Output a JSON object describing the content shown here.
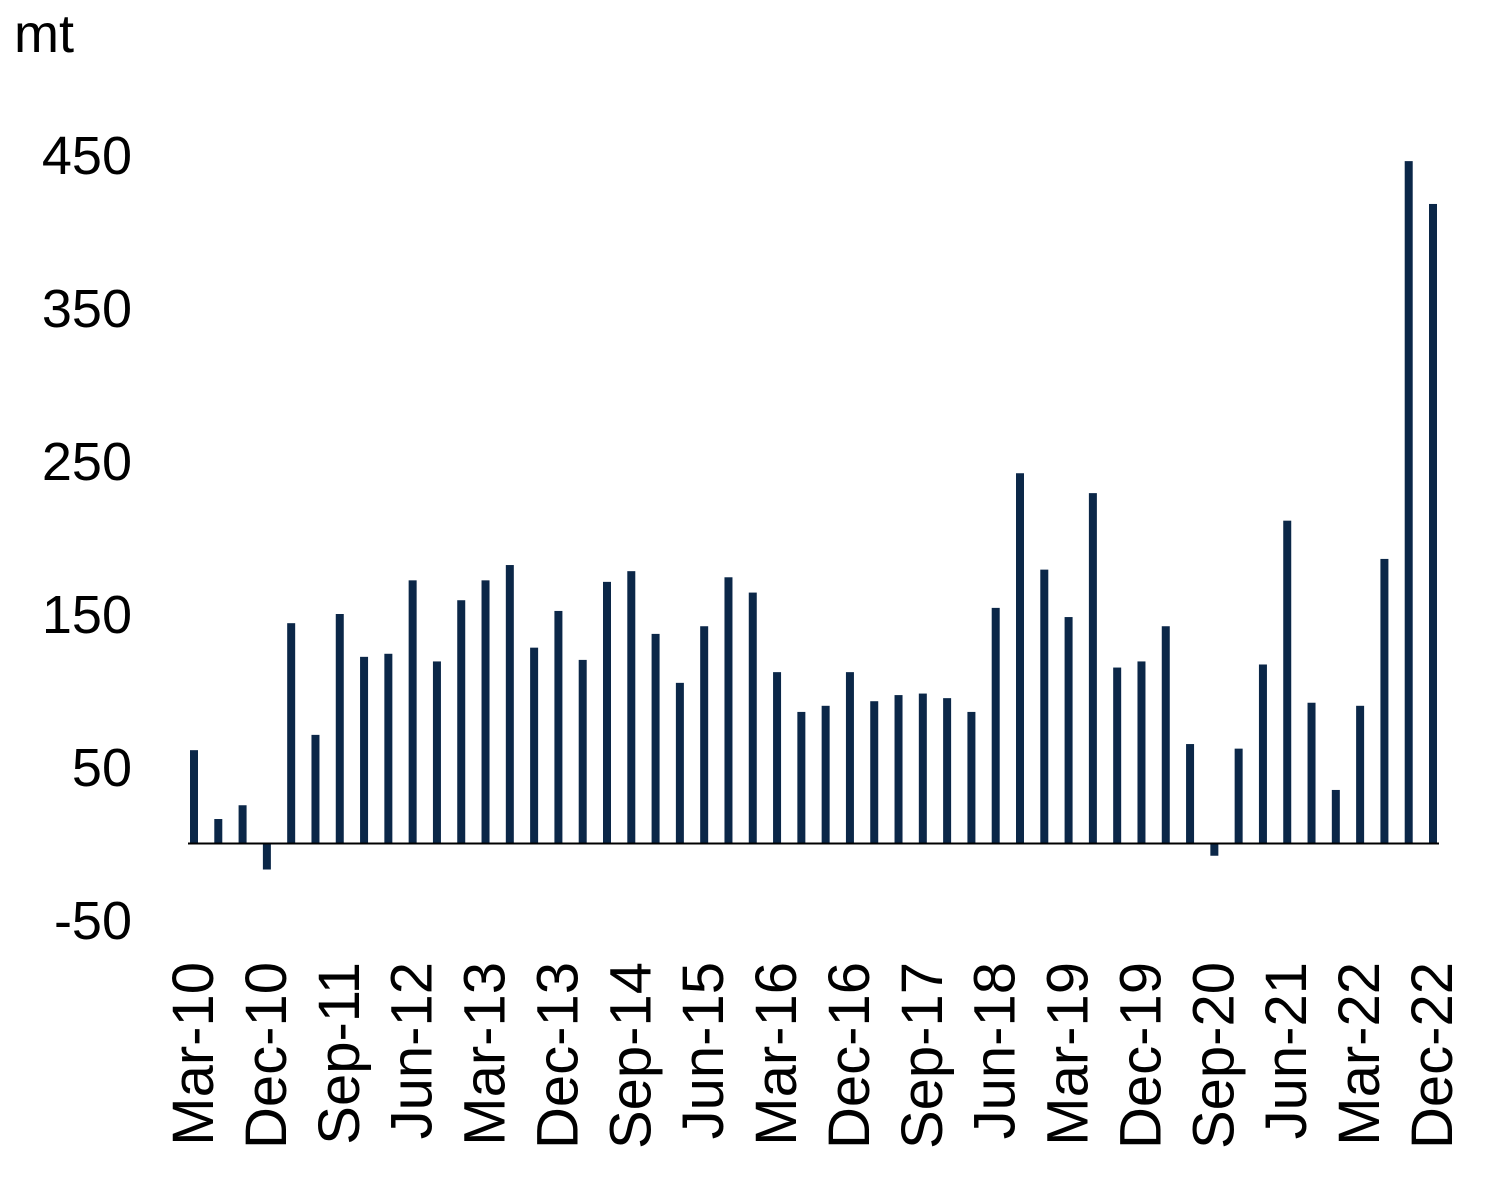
{
  "chart_data": {
    "type": "bar",
    "y_label": "mt",
    "categories": [
      "Mar-10",
      null,
      null,
      "Dec-10",
      null,
      null,
      "Sep-11",
      null,
      null,
      "Jun-12",
      null,
      null,
      "Mar-13",
      null,
      null,
      "Dec-13",
      null,
      null,
      "Sep-14",
      null,
      null,
      "Jun-15",
      null,
      null,
      "Mar-16",
      null,
      null,
      "Dec-16",
      null,
      null,
      "Sep-17",
      null,
      null,
      "Jun-18",
      null,
      null,
      "Mar-19",
      null,
      null,
      "Dec-19",
      null,
      null,
      "Sep-20",
      null,
      null,
      "Jun-21",
      null,
      null,
      "Mar-22",
      null,
      null,
      "Dec-22"
    ],
    "values": [
      61,
      16,
      25,
      -17,
      144,
      71,
      150,
      122,
      124,
      172,
      119,
      159,
      172,
      182,
      128,
      152,
      120,
      171,
      178,
      137,
      105,
      142,
      174,
      164,
      112,
      86,
      90,
      112,
      93,
      97,
      98,
      95,
      86,
      154,
      242,
      179,
      148,
      229,
      115,
      119,
      142,
      65,
      -8,
      62,
      117,
      211,
      92,
      35,
      90,
      186,
      446,
      418
    ],
    "color": "#0b2748",
    "ylim": [
      -50,
      450
    ],
    "yticks": [
      -50,
      50,
      150,
      250,
      350,
      450
    ],
    "grid": false
  }
}
